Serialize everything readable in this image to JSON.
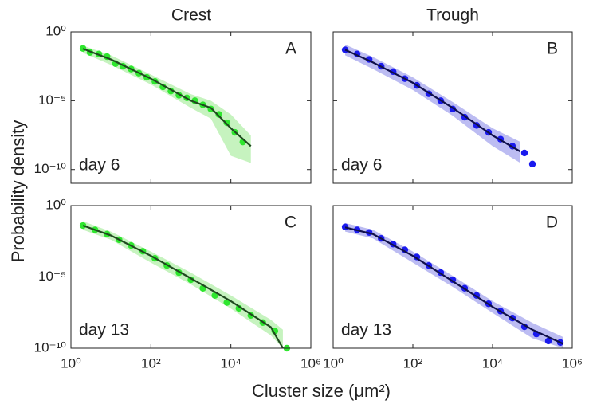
{
  "figure": {
    "column_titles": [
      "Crest",
      "Trough"
    ],
    "ylabel": "Probability density",
    "xlabel": "Cluster size (μm²)"
  },
  "chart_data": [
    {
      "type": "line",
      "label": "A",
      "annotation": "day 6",
      "xlog": true,
      "ylog": true,
      "xlim": [
        1,
        1000000
      ],
      "ylim": [
        1e-11,
        1
      ],
      "xticks": [
        1,
        100,
        10000,
        1000000
      ],
      "yticks": [
        {
          "value": 1,
          "label": "10⁰"
        },
        {
          "value": 1e-05,
          "label": "10⁻⁵"
        },
        {
          "value": 1e-10,
          "label": "10⁻¹⁰"
        }
      ],
      "points": {
        "color": "#2ee62e",
        "x": [
          2,
          3,
          5,
          8,
          13,
          20,
          32,
          50,
          79,
          126,
          200,
          316,
          501,
          794,
          1259,
          1995,
          3162,
          5012,
          7943,
          12589,
          19953
        ],
        "values": [
          0.063,
          0.032,
          0.025,
          0.016,
          0.005,
          0.0032,
          0.002,
          0.001,
          0.0005,
          0.00025,
          0.0001,
          5e-05,
          2.5e-05,
          1.6e-05,
          1e-05,
          5e-06,
          2.5e-06,
          1e-06,
          2.5e-07,
          5e-08,
          1e-08
        ]
      },
      "fit": {
        "color": "#1f4a1f",
        "x": [
          2,
          10,
          100,
          1000,
          3162,
          10000,
          31623
        ],
        "values": [
          0.06,
          0.01,
          0.0004,
          1e-05,
          3e-06,
          1e-07,
          5e-09
        ]
      },
      "band": {
        "color": "#c6f3bf",
        "x": [
          2,
          10,
          100,
          1000,
          3162,
          10000,
          31623
        ],
        "low": [
          0.03,
          0.004,
          0.00015,
          3e-06,
          5e-07,
          1e-09,
          3e-10
        ],
        "high": [
          0.1,
          0.02,
          0.0008,
          3e-05,
          1e-05,
          1e-06,
          3e-08
        ]
      }
    },
    {
      "type": "line",
      "label": "B",
      "annotation": "day 6",
      "xlog": true,
      "ylog": true,
      "xlim": [
        1,
        1000000
      ],
      "ylim": [
        1e-11,
        1
      ],
      "xticks": [
        1,
        100,
        10000,
        1000000
      ],
      "yticks": [
        1,
        1e-05,
        1e-10
      ],
      "points": {
        "color": "#1a1aee",
        "x": [
          2,
          4,
          8,
          16,
          32,
          63,
          126,
          251,
          501,
          1000,
          1995,
          3981,
          7943,
          15849,
          31623,
          63096,
          100000
        ],
        "values": [
          0.05,
          0.025,
          0.01,
          0.0032,
          0.0013,
          0.0004,
          0.00013,
          3.2e-05,
          1e-05,
          2.5e-06,
          6.3e-07,
          1.6e-07,
          5e-08,
          1.6e-08,
          5e-09,
          1.6e-09,
          2.5e-10
        ]
      },
      "fit": {
        "color": "#10104a",
        "x": [
          2,
          10,
          100,
          1000,
          10000,
          50000
        ],
        "values": [
          0.05,
          0.006,
          0.0002,
          3e-06,
          3e-08,
          2e-09
        ]
      },
      "band": {
        "color": "#bcbcf2",
        "x": [
          2,
          10,
          100,
          1000,
          10000,
          50000
        ],
        "low": [
          0.02,
          0.002,
          6e-05,
          8e-07,
          5e-09,
          3e-10
        ],
        "high": [
          0.12,
          0.015,
          0.0005,
          8e-06,
          1e-07,
          1e-08
        ]
      }
    },
    {
      "type": "line",
      "label": "C",
      "annotation": "day 13",
      "xlog": true,
      "ylog": true,
      "xlim": [
        1,
        1000000
      ],
      "ylim": [
        1e-10,
        1
      ],
      "xticks": [
        {
          "value": 1,
          "label": "10⁰"
        },
        {
          "value": 100,
          "label": "10²"
        },
        {
          "value": 10000,
          "label": "10⁴"
        },
        {
          "value": 1000000,
          "label": "10⁶"
        }
      ],
      "yticks": [
        {
          "value": 1,
          "label": "10⁰"
        },
        {
          "value": 1e-05,
          "label": "10⁻⁵"
        },
        {
          "value": 1e-10,
          "label": "10⁻¹⁰"
        }
      ],
      "points": {
        "color": "#2ee62e",
        "x": [
          2,
          4,
          8,
          16,
          32,
          63,
          126,
          251,
          501,
          1000,
          1995,
          3981,
          7943,
          15849,
          31623,
          63096,
          125893,
          251189
        ],
        "values": [
          0.04,
          0.02,
          0.01,
          0.004,
          0.0016,
          0.00063,
          0.0002,
          6.3e-05,
          2e-05,
          6.3e-06,
          1.6e-06,
          5e-07,
          1.6e-07,
          6.3e-08,
          2e-08,
          6.3e-09,
          1.6e-09,
          1e-10
        ]
      },
      "fit": {
        "color": "#1f4a1f",
        "x": [
          2,
          10,
          100,
          1000,
          10000,
          100000,
          200000
        ],
        "values": [
          0.04,
          0.008,
          0.0003,
          8e-06,
          2e-07,
          3e-09,
          1e-10
        ]
      },
      "band": {
        "color": "#c6f3bf",
        "x": [
          2,
          10,
          100,
          1000,
          10000,
          100000,
          200000
        ],
        "low": [
          0.02,
          0.004,
          0.0001,
          3e-06,
          6e-08,
          8e-10,
          1e-10
        ],
        "high": [
          0.08,
          0.015,
          0.0006,
          2e-05,
          5e-07,
          1e-08,
          2e-09
        ]
      }
    },
    {
      "type": "line",
      "label": "D",
      "annotation": "day 13",
      "xlog": true,
      "ylog": true,
      "xlim": [
        1,
        1000000
      ],
      "ylim": [
        1e-10,
        1
      ],
      "xticks": [
        {
          "value": 1,
          "label": "10⁰"
        },
        {
          "value": 100,
          "label": "10²"
        },
        {
          "value": 10000,
          "label": "10⁴"
        },
        {
          "value": 1000000,
          "label": "10⁶"
        }
      ],
      "yticks": [
        1,
        1e-05,
        1e-10
      ],
      "points": {
        "color": "#1a1aee",
        "x": [
          2,
          4,
          8,
          16,
          32,
          63,
          126,
          251,
          501,
          1000,
          1995,
          3981,
          7943,
          15849,
          31623,
          63096,
          125893,
          251189,
          501187
        ],
        "values": [
          0.032,
          0.02,
          0.013,
          0.005,
          0.002,
          0.0008,
          0.00025,
          6.3e-05,
          2e-05,
          6.3e-06,
          1.6e-06,
          5e-07,
          1.3e-07,
          4e-08,
          1.3e-08,
          3.2e-09,
          1e-09,
          3.2e-10,
          2.5e-10
        ]
      },
      "fit": {
        "color": "#10104a",
        "x": [
          2,
          10,
          100,
          1000,
          10000,
          100000,
          600000
        ],
        "values": [
          0.03,
          0.01,
          0.0003,
          5e-06,
          8e-08,
          2e-09,
          2e-10
        ]
      },
      "band": {
        "color": "#bcbcf2",
        "x": [
          2,
          10,
          100,
          1000,
          10000,
          100000,
          600000
        ],
        "low": [
          0.015,
          0.005,
          0.0001,
          2e-06,
          3e-08,
          5e-10,
          1e-10
        ],
        "high": [
          0.06,
          0.02,
          0.0006,
          1.2e-05,
          2e-07,
          6e-09,
          6e-10
        ]
      }
    }
  ]
}
